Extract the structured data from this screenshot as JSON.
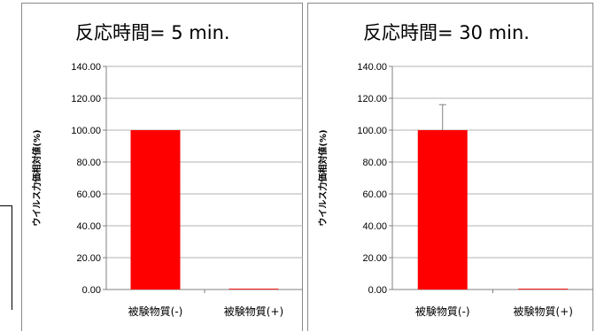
{
  "chart_data": [
    {
      "type": "bar",
      "title": "反応時間= 5 min.",
      "ylabel": "ウイルス力価相対値(%)",
      "xlabel": "",
      "categories": [
        "被験物質(-)",
        "被験物質(+)"
      ],
      "values": [
        100.0,
        0.5
      ],
      "error": [
        0.0,
        0.0
      ],
      "ylim": [
        0,
        140
      ],
      "yticks": [
        "0.00",
        "20.00",
        "40.00",
        "60.00",
        "80.00",
        "100.00",
        "120.00",
        "140.00"
      ],
      "grid": true,
      "legend": "none",
      "bar_color": "#ff0000"
    },
    {
      "type": "bar",
      "title": "反応時間= 30 min.",
      "ylabel": "ウイルス力価相対値(%)",
      "xlabel": "",
      "categories": [
        "被験物質(-)",
        "被験物質(+)"
      ],
      "values": [
        100.0,
        0.5
      ],
      "error": [
        16.0,
        0.0
      ],
      "ylim": [
        0,
        140
      ],
      "yticks": [
        "0.00",
        "20.00",
        "40.00",
        "60.00",
        "80.00",
        "100.00",
        "120.00",
        "140.00"
      ],
      "grid": true,
      "legend": "none",
      "bar_color": "#ff0000"
    }
  ]
}
